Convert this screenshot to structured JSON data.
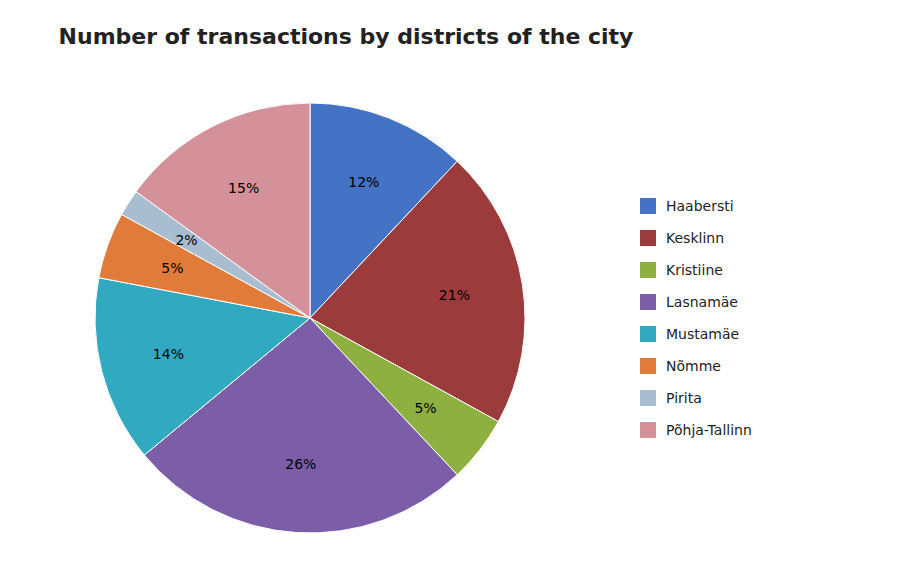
{
  "chart_data": {
    "type": "pie",
    "title": "Number of transactions by districts of the city",
    "categories": [
      "Haabersti",
      "Kesklinn",
      "Kristiine",
      "Lasnamäe",
      "Mustamäe",
      "Nõmme",
      "Pirita",
      "Põhja-Tallinn"
    ],
    "values": [
      12,
      21,
      5,
      26,
      14,
      5,
      2,
      15
    ],
    "value_labels": [
      "12%",
      "21%",
      "5%",
      "26%",
      "14%",
      "5%",
      "2%",
      "15%"
    ],
    "colors": [
      "#4472C4",
      "#9C3B3B",
      "#8DB040",
      "#7B5EA7",
      "#31A9C0",
      "#E07B39",
      "#A8BED0",
      "#D4919A"
    ],
    "data_labels": true,
    "legend": "right"
  }
}
